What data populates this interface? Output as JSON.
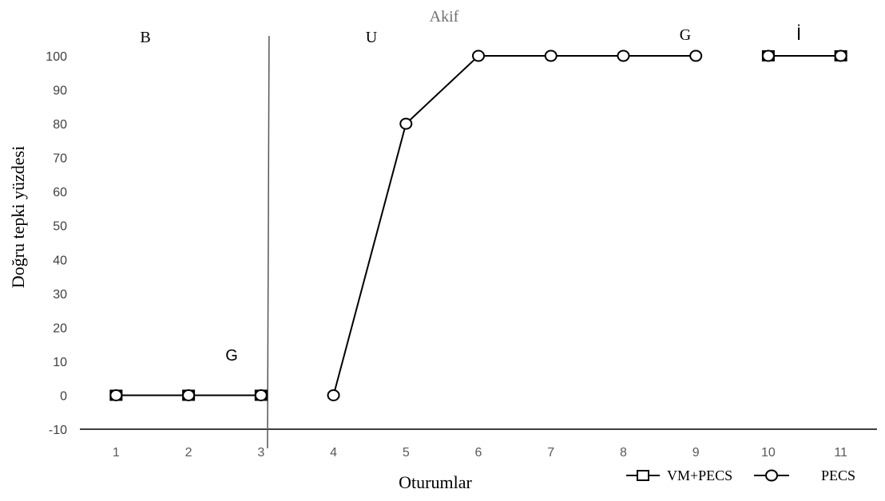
{
  "chart_data": {
    "type": "line",
    "title": "Akif",
    "xlabel": "Oturumlar",
    "ylabel": "Doğru tepki yüzdesi",
    "x_ticks": [
      "1",
      "2",
      "3",
      "4",
      "5",
      "6",
      "7",
      "8",
      "9",
      "10",
      "11"
    ],
    "y_ticks": [
      "100",
      "90",
      "80",
      "70",
      "60",
      "50",
      "40",
      "30",
      "20",
      "10",
      "0",
      "-10"
    ],
    "ylim": [
      -10,
      100
    ],
    "xlim": [
      0.5,
      11.5
    ],
    "grid": false,
    "legend_position": "bottom-right",
    "phase_labels": [
      "B",
      "U",
      "G",
      "İ",
      "G"
    ],
    "phase_change_after_session": 3,
    "series": [
      {
        "name": "VM+PECS",
        "marker": "square",
        "segments": [
          [
            [
              1,
              0
            ],
            [
              2,
              0
            ],
            [
              3,
              0
            ]
          ],
          [
            [
              10,
              100
            ],
            [
              11,
              100
            ]
          ]
        ]
      },
      {
        "name": "PECS",
        "marker": "circle",
        "segments": [
          [
            [
              1,
              0
            ],
            [
              2,
              0
            ],
            [
              3,
              0
            ]
          ],
          [
            [
              4,
              0
            ],
            [
              5,
              80
            ],
            [
              6,
              100
            ],
            [
              7,
              100
            ],
            [
              8,
              100
            ],
            [
              9,
              100
            ]
          ],
          [
            [
              10,
              100
            ],
            [
              11,
              100
            ]
          ]
        ]
      }
    ]
  }
}
